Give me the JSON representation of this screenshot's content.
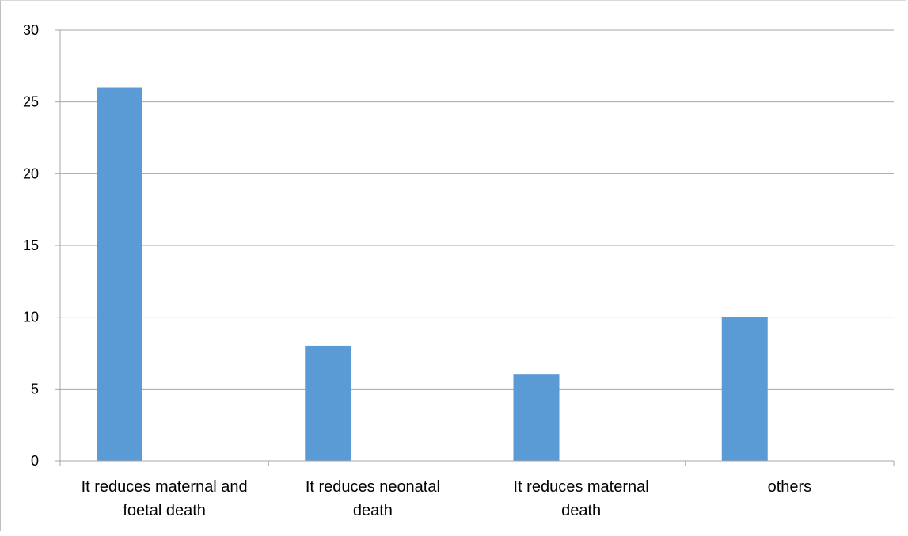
{
  "chart_data": {
    "type": "bar",
    "categories": [
      [
        "It reduces maternal and",
        "foetal death"
      ],
      [
        "It reduces neonatal",
        "death"
      ],
      [
        "It reduces maternal",
        "death"
      ],
      [
        "others"
      ]
    ],
    "values": [
      26,
      8,
      6,
      10
    ],
    "ylim": [
      0,
      30
    ],
    "yticks": [
      "0",
      "5",
      "10",
      "15",
      "20",
      "25",
      "30"
    ],
    "title": "",
    "xlabel": "",
    "ylabel": "",
    "grid": true,
    "legend": "none",
    "colors": {
      "bar": "#5b9bd5",
      "grid": "#a6a6a6",
      "axis": "#a6a6a6",
      "text": "#000000"
    }
  }
}
